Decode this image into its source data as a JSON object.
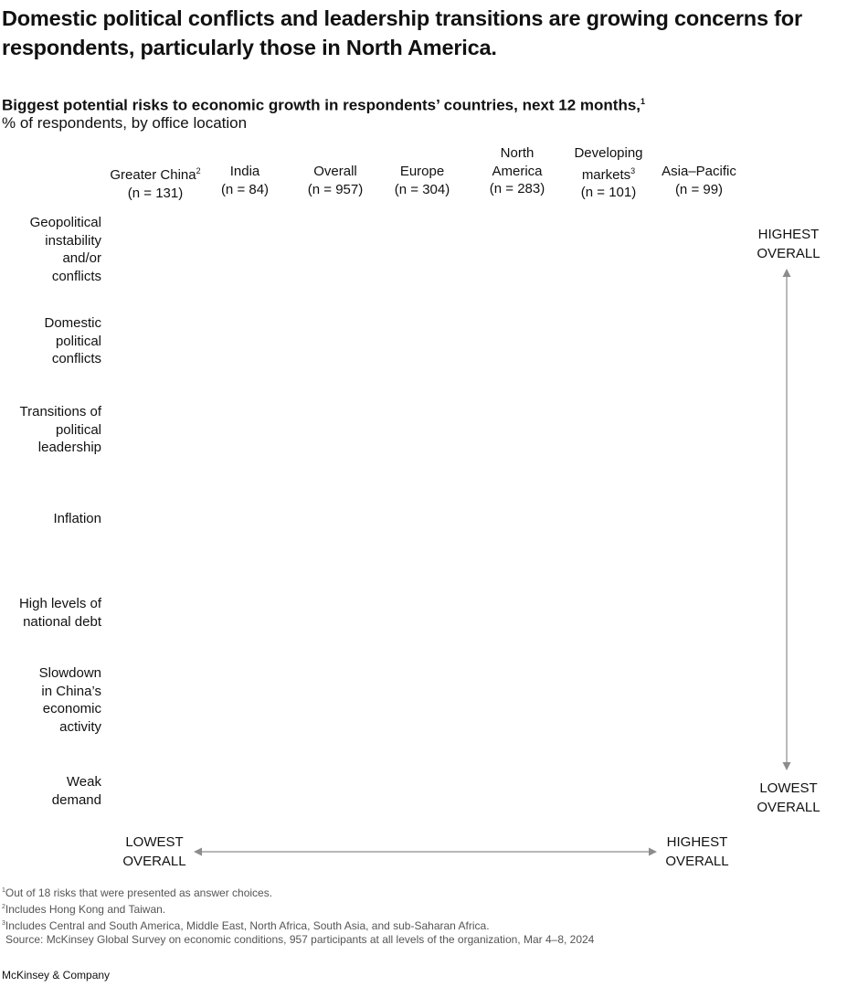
{
  "headline": "Domestic political conflicts and leadership transitions are growing concerns for respondents, particularly those in North America.",
  "chart_data": {
    "type": "table",
    "title": "Biggest potential risks to economic growth in respondents’ countries, next 12 months,",
    "title_footnote": "1",
    "subtitle": "% of respondents, by office location",
    "columns": [
      {
        "name": "Greater China",
        "footnote": "2",
        "n": "(n = 131)"
      },
      {
        "name": "India",
        "footnote": "",
        "n": "(n = 84)"
      },
      {
        "name": "Overall",
        "footnote": "",
        "n": "(n = 957)"
      },
      {
        "name": "Europe",
        "footnote": "",
        "n": "(n = 304)"
      },
      {
        "name": "North America",
        "footnote": "",
        "n": "(n = 283)"
      },
      {
        "name": "Developing markets",
        "footnote": "3",
        "n": "(n = 101)"
      },
      {
        "name": "Asia–Pacific",
        "footnote": "",
        "n": "(n = 99)"
      }
    ],
    "rows": [
      "Geopolitical instability and/or conflicts",
      "Domestic political conflicts",
      "Transitions of political leadership",
      "Inflation",
      "High levels of national debt",
      "Slowdown in China’s economic activity",
      "Weak demand"
    ],
    "vertical_axis": {
      "top": "HIGHEST OVERALL",
      "bottom": "LOWEST OVERALL"
    },
    "horizontal_axis": {
      "left": "LOWEST OVERALL",
      "right": "HIGHEST OVERALL"
    },
    "values_visible": false
  },
  "footnotes": [
    {
      "mark": "1",
      "text": "Out of 18 risks that were presented as answer choices."
    },
    {
      "mark": "2",
      "text": "Includes Hong Kong and Taiwan."
    },
    {
      "mark": "3",
      "text": "Includes Central and South America, Middle East, North Africa, South Asia, and sub-Saharan Africa."
    }
  ],
  "source": "Source: McKinsey Global Survey on economic conditions, 957 participants at all levels of the organization, Mar 4–8, 2024",
  "brand": "McKinsey & Company",
  "colors": {
    "text": "#111111",
    "muted": "#555555",
    "arrow": "#8c8c8c"
  }
}
